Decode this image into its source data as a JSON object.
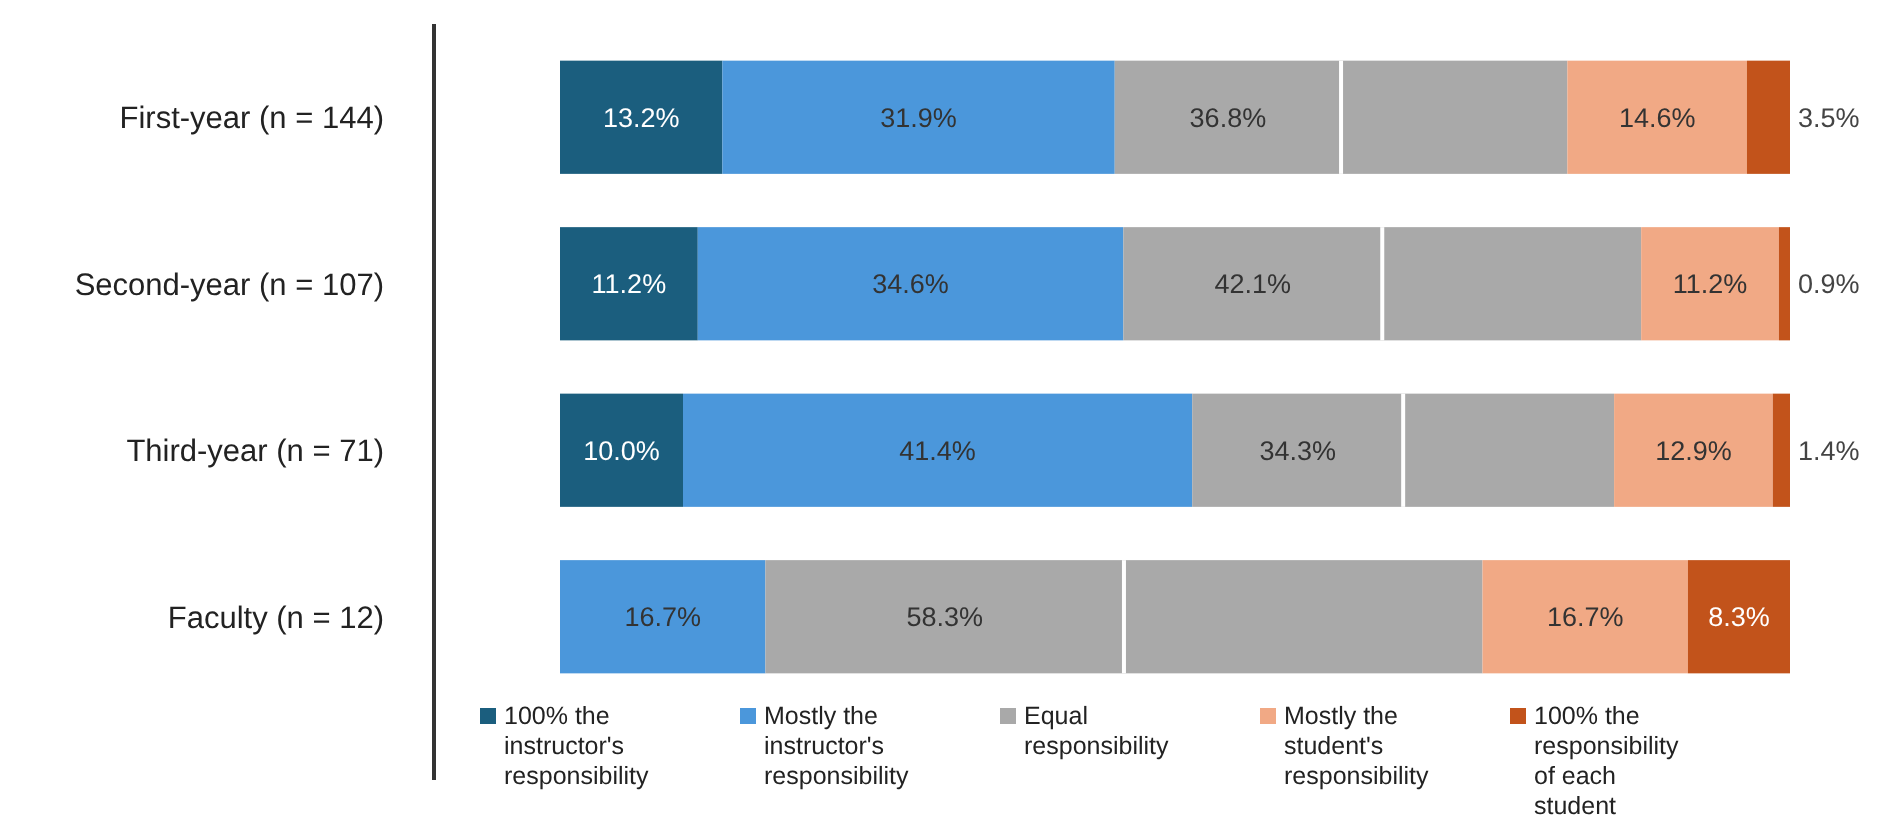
{
  "chart_data": {
    "type": "bar",
    "orientation": "horizontal",
    "stacked": true,
    "categories": [
      "First-year (n = 144)",
      "Second-year (n = 107)",
      "Third-year (n = 71)",
      "Faculty (n = 12)"
    ],
    "tick_labels": "y",
    "legend": "bottom",
    "series": [
      {
        "name": "100% the instructor's responsibility",
        "color": "#1b5e7e",
        "values": [
          13.2,
          11.2,
          10.0,
          null
        ],
        "value_labels": [
          "13.2%",
          "11.2%",
          "10.0%",
          null
        ]
      },
      {
        "name": "Mostly the instructor's responsibility",
        "color": "#4b97db",
        "values": [
          31.9,
          34.6,
          41.4,
          16.7
        ],
        "value_labels": [
          "31.9%",
          "34.6%",
          "41.4%",
          "16.7%"
        ]
      },
      {
        "name": "Equal responsibility",
        "color": "#a9a9a9",
        "values": [
          36.8,
          42.1,
          34.3,
          58.3
        ],
        "value_labels": [
          "36.8%",
          "42.1%",
          "34.3%",
          "58.3%"
        ]
      },
      {
        "name": "Mostly the student's responsibility",
        "color": "#f1a985",
        "values": [
          14.6,
          11.2,
          12.9,
          16.7
        ],
        "value_labels": [
          "14.6%",
          "11.2%",
          "12.9%",
          "16.7%"
        ]
      },
      {
        "name": "100% the responsibility of each student",
        "color": "#c2531b",
        "values": [
          3.5,
          0.9,
          1.4,
          8.3
        ],
        "value_labels": [
          "3.5%",
          "0.9%",
          "1.4%",
          "8.3%"
        ]
      }
    ]
  }
}
